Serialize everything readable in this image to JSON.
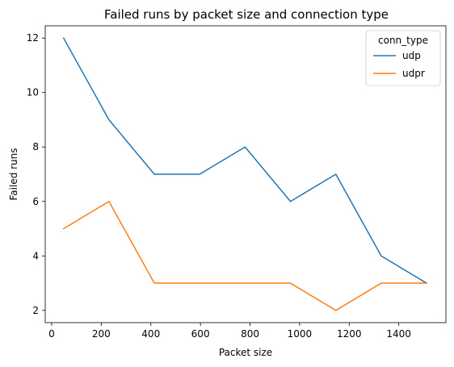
{
  "chart_data": {
    "type": "line",
    "title": "Failed runs by packet size and connection type",
    "xlabel": "Packet size",
    "ylabel": "Failed runs",
    "xlim": [
      -26,
      1590
    ],
    "ylim": [
      1.55,
      12.45
    ],
    "x_ticks": [
      0,
      200,
      400,
      600,
      800,
      1000,
      1200,
      1400
    ],
    "y_ticks": [
      2,
      4,
      6,
      8,
      10,
      12
    ],
    "grid": false,
    "legend": {
      "title": "conn_type",
      "placement": "top-right"
    },
    "x": [
      48,
      231,
      414,
      597,
      780,
      963,
      1146,
      1329,
      1512
    ],
    "series": [
      {
        "name": "udp",
        "color": "#1f77b4",
        "values": [
          12,
          9,
          7,
          7,
          8,
          6,
          7,
          4,
          3
        ]
      },
      {
        "name": "udpr",
        "color": "#ff7f0e",
        "values": [
          5,
          6,
          3,
          3,
          3,
          3,
          2,
          3,
          3
        ]
      }
    ]
  }
}
